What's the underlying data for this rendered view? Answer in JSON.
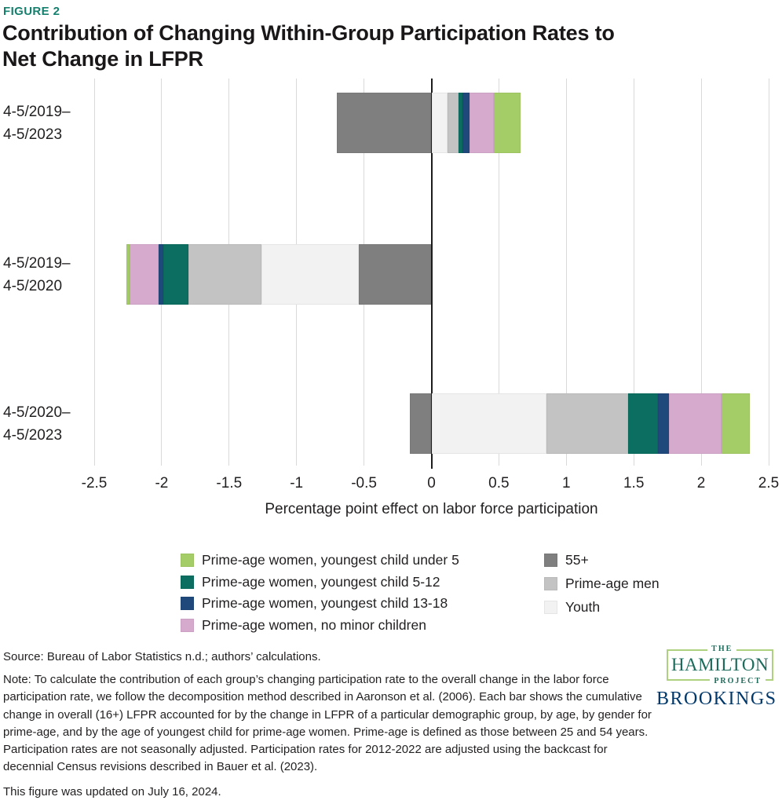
{
  "figure_label": "FIGURE 2",
  "title_line1": "Contribution of Changing Within-Group Participation Rates to",
  "title_line2": "Net Change in LFPR",
  "colors": {
    "figure_label": "#15806d",
    "hamilton_green": "#1d6b5b",
    "hamilton_border": "#aed17f",
    "brookings_navy": "#00386b",
    "gridline": "#d9d9d9",
    "zero_line": "#1c1c1c"
  },
  "chart_data": {
    "type": "bar",
    "orientation": "horizontal",
    "stacked": true,
    "title": "Contribution of Changing Within-Group Participation Rates to Net Change in LFPR",
    "xlabel": "Percentage point effect on labor force participation",
    "xlim": [
      -2.5,
      2.5
    ],
    "xticks": [
      -2.5,
      -2,
      -1.5,
      -1,
      -0.5,
      0,
      0.5,
      1,
      1.5,
      2,
      2.5
    ],
    "xtick_labels": [
      "-2.5",
      "-2",
      "-1.5",
      "-1",
      "-0.5",
      "0",
      "0.5",
      "1",
      "1.5",
      "2",
      "2.5"
    ],
    "grid": true,
    "zero_line": true,
    "categories": [
      "4-5/2019–4-5/2023",
      "4-5/2019–4-5/2020",
      "4-5/2020–4-5/2023"
    ],
    "category_lines": [
      [
        "4-5/2019–",
        "4-5/2023"
      ],
      [
        "4-5/2019–",
        "4-5/2020"
      ],
      [
        "4-5/2020–",
        "4-5/2023"
      ]
    ],
    "stack_order_from_zero": [
      "plus55",
      "youth",
      "men",
      "child5_12",
      "child13_18",
      "no_minor",
      "under5"
    ],
    "series": [
      {
        "key": "under5",
        "name": "Prime-age women, youngest child under 5",
        "color": "#a5cd67",
        "values": [
          0.2,
          -0.02,
          0.21
        ]
      },
      {
        "key": "child5_12",
        "name": "Prime-age women, youngest child 5-12",
        "color": "#0b6e60",
        "values": [
          0.03,
          -0.19,
          0.22
        ]
      },
      {
        "key": "child13_18",
        "name": "Prime-age women, youngest child 13-18",
        "color": "#20497b",
        "values": [
          0.05,
          -0.03,
          0.08
        ]
      },
      {
        "key": "no_minor",
        "name": "Prime-age women, no minor children",
        "color": "#d5aacd",
        "values": [
          0.18,
          -0.22,
          0.39
        ]
      },
      {
        "key": "plus55",
        "name": "55+",
        "color": "#7f7f7f",
        "values": [
          -0.7,
          -0.54,
          -0.16
        ]
      },
      {
        "key": "men",
        "name": "Prime-age men",
        "color": "#c3c3c3",
        "values": [
          0.08,
          -0.54,
          0.61
        ]
      },
      {
        "key": "youth",
        "name": "Youth",
        "color": "#f2f2f2",
        "values": [
          0.12,
          -0.72,
          0.85
        ]
      }
    ],
    "legend": {
      "position": "bottom",
      "left_keys": [
        "under5",
        "child5_12",
        "child13_18",
        "no_minor"
      ],
      "right_keys": [
        "plus55",
        "men",
        "youth"
      ]
    }
  },
  "source": "Source: Bureau of Labor Statistics n.d.; authors’ calculations.",
  "note": "Note: To calculate the contribution of each group’s changing participation rate to the overall change in the labor force participation rate, we follow the decomposition method described in Aaronson et al. (2006). Each bar shows the cumulative change in overall (16+) LFPR accounted for by the change in LFPR of a particular demographic group, by age, by gender for prime-age, and by the age of youngest child for prime-age women. Prime-age is defined as those between 25 and 54 years. Participation rates are not seasonally adjusted. Participation rates for 2012-2022 are adjusted using the backcast for decennial Census revisions described in Bauer et al. (2023).",
  "updated": "This figure was updated on July 16, 2024.",
  "logos": {
    "hamilton_top": "THE",
    "hamilton_main": "HAMILTON",
    "hamilton_sub": "PROJECT",
    "brookings": "BROOKINGS"
  }
}
